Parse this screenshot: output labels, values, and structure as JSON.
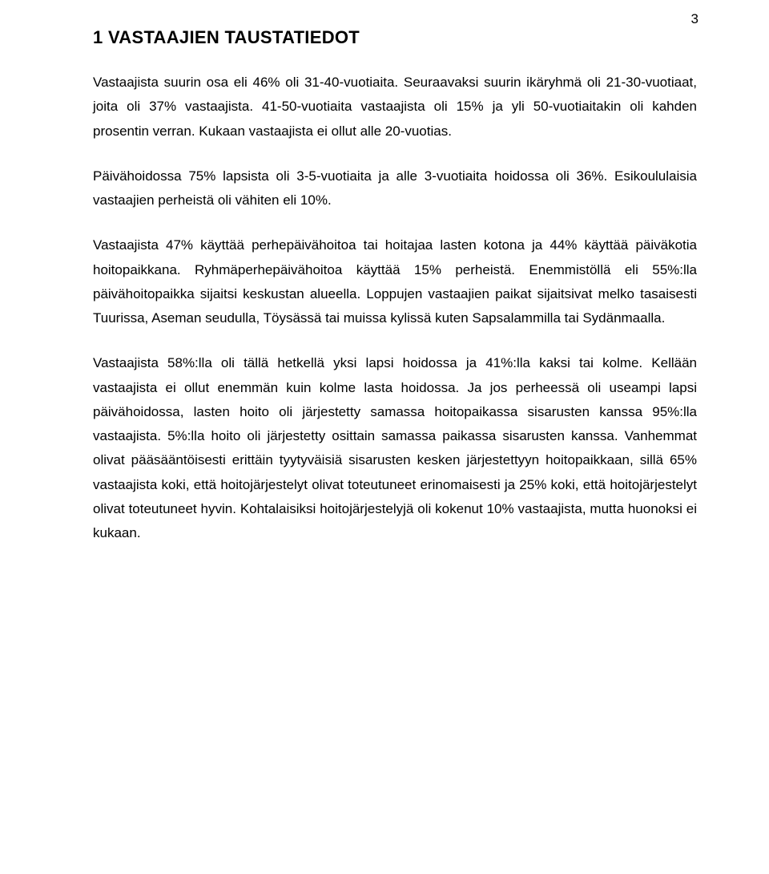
{
  "page_number": "3",
  "heading": "1 VASTAAJIEN TAUSTATIEDOT",
  "paragraphs": [
    "Vastaajista suurin osa eli 46% oli 31-40-vuotiaita. Seuraavaksi suurin ikäryhmä oli 21-30-vuotiaat, joita oli 37% vastaajista. 41-50-vuotiaita vastaajista oli 15% ja yli 50-vuotiaitakin oli kahden prosentin verran. Kukaan vastaajista ei ollut alle 20-vuotias.",
    "Päivähoidossa 75% lapsista oli 3-5-vuotiaita ja alle 3-vuotiaita hoidossa oli 36%. Esikoululaisia vastaajien perheistä oli vähiten eli 10%.",
    "Vastaajista 47% käyttää perhepäivähoitoa tai hoitajaa lasten kotona ja 44% käyttää päiväkotia hoitopaikkana. Ryhmäperhepäivähoitoa käyttää 15% perheistä. Enemmistöllä eli 55%:lla päivähoitopaikka sijaitsi keskustan alueella. Loppujen vastaajien paikat sijaitsivat melko tasaisesti Tuurissa, Aseman seudulla, Töysässä tai muissa kylissä kuten Sapsalammilla tai Sydänmaalla.",
    "Vastaajista 58%:lla oli tällä hetkellä yksi lapsi hoidossa ja 41%:lla kaksi tai kolme. Kellään vastaajista ei ollut enemmän kuin kolme lasta hoidossa. Ja jos perheessä oli useampi lapsi päivähoidossa, lasten hoito oli järjestetty samassa hoitopaikassa sisarusten kanssa 95%:lla vastaajista. 5%:lla hoito oli järjestetty osittain samassa paikassa sisarusten kanssa. Vanhemmat olivat pääsääntöisesti erittäin tyytyväisiä sisarusten kesken järjestettyyn hoitopaikkaan, sillä 65% vastaajista koki, että hoitojärjestelyt olivat toteutuneet erinomaisesti ja 25% koki, että hoitojärjestelyt olivat toteutuneet hyvin. Kohtalaisiksi hoitojärjestelyjä oli kokenut 10% vastaajista, mutta huonoksi ei kukaan."
  ]
}
